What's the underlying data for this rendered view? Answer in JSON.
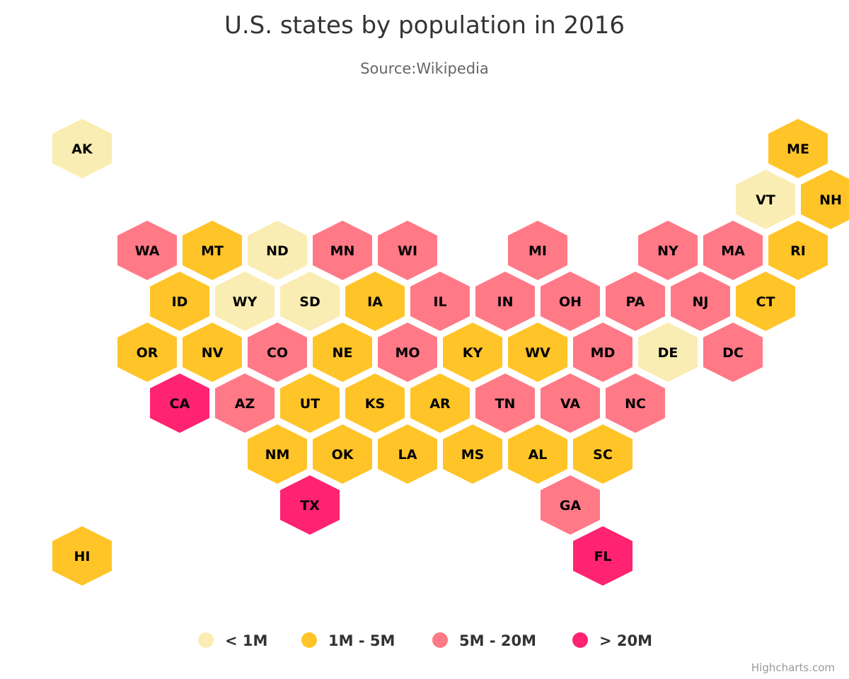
{
  "credits": "Highcharts.com",
  "chart_data": {
    "type": "heatmap",
    "variant": "tilemap-hexagon",
    "title": "U.S. states by population in 2016",
    "subtitle": "Source:Wikipedia",
    "legend": {
      "placement": "bottom-center",
      "classes": [
        {
          "name": "< 1M",
          "color": "#F9EDB3"
        },
        {
          "name": "1M - 5M",
          "color": "#FFC428"
        },
        {
          "name": "5M - 20M",
          "color": "#FF7987"
        },
        {
          "name": "> 20M",
          "color": "#FF2371"
        }
      ]
    },
    "grid_columns": [
      "x",
      "y"
    ],
    "tiles": [
      {
        "code": "AK",
        "x": 0,
        "y": 0,
        "class": "< 1M"
      },
      {
        "code": "ME",
        "x": 11,
        "y": 0,
        "class": "1M - 5M"
      },
      {
        "code": "VT",
        "x": 10,
        "y": 1,
        "class": "< 1M"
      },
      {
        "code": "NH",
        "x": 11,
        "y": 1,
        "class": "1M - 5M"
      },
      {
        "code": "WA",
        "x": 1,
        "y": 2,
        "class": "5M - 20M"
      },
      {
        "code": "MT",
        "x": 2,
        "y": 2,
        "class": "1M - 5M"
      },
      {
        "code": "ND",
        "x": 3,
        "y": 2,
        "class": "< 1M"
      },
      {
        "code": "MN",
        "x": 4,
        "y": 2,
        "class": "5M - 20M"
      },
      {
        "code": "WI",
        "x": 5,
        "y": 2,
        "class": "5M - 20M"
      },
      {
        "code": "MI",
        "x": 7,
        "y": 2,
        "class": "5M - 20M"
      },
      {
        "code": "NY",
        "x": 9,
        "y": 2,
        "class": "5M - 20M"
      },
      {
        "code": "MA",
        "x": 10,
        "y": 2,
        "class": "5M - 20M"
      },
      {
        "code": "RI",
        "x": 11,
        "y": 2,
        "class": "1M - 5M"
      },
      {
        "code": "ID",
        "x": 1,
        "y": 3,
        "class": "1M - 5M"
      },
      {
        "code": "WY",
        "x": 2,
        "y": 3,
        "class": "< 1M"
      },
      {
        "code": "SD",
        "x": 3,
        "y": 3,
        "class": "< 1M"
      },
      {
        "code": "IA",
        "x": 4,
        "y": 3,
        "class": "1M - 5M"
      },
      {
        "code": "IL",
        "x": 5,
        "y": 3,
        "class": "5M - 20M"
      },
      {
        "code": "IN",
        "x": 6,
        "y": 3,
        "class": "5M - 20M"
      },
      {
        "code": "OH",
        "x": 7,
        "y": 3,
        "class": "5M - 20M"
      },
      {
        "code": "PA",
        "x": 8,
        "y": 3,
        "class": "5M - 20M"
      },
      {
        "code": "NJ",
        "x": 9,
        "y": 3,
        "class": "5M - 20M"
      },
      {
        "code": "CT",
        "x": 10,
        "y": 3,
        "class": "1M - 5M"
      },
      {
        "code": "OR",
        "x": 1,
        "y": 4,
        "class": "1M - 5M"
      },
      {
        "code": "NV",
        "x": 2,
        "y": 4,
        "class": "1M - 5M"
      },
      {
        "code": "CO",
        "x": 3,
        "y": 4,
        "class": "5M - 20M"
      },
      {
        "code": "NE",
        "x": 4,
        "y": 4,
        "class": "1M - 5M"
      },
      {
        "code": "MO",
        "x": 5,
        "y": 4,
        "class": "5M - 20M"
      },
      {
        "code": "KY",
        "x": 6,
        "y": 4,
        "class": "1M - 5M"
      },
      {
        "code": "WV",
        "x": 7,
        "y": 4,
        "class": "1M - 5M"
      },
      {
        "code": "MD",
        "x": 8,
        "y": 4,
        "class": "5M - 20M"
      },
      {
        "code": "DE",
        "x": 9,
        "y": 4,
        "class": "< 1M"
      },
      {
        "code": "DC",
        "x": 10,
        "y": 4,
        "class": "5M - 20M"
      },
      {
        "code": "CA",
        "x": 1,
        "y": 5,
        "class": "> 20M"
      },
      {
        "code": "AZ",
        "x": 2,
        "y": 5,
        "class": "5M - 20M"
      },
      {
        "code": "UT",
        "x": 3,
        "y": 5,
        "class": "1M - 5M"
      },
      {
        "code": "KS",
        "x": 4,
        "y": 5,
        "class": "1M - 5M"
      },
      {
        "code": "AR",
        "x": 5,
        "y": 5,
        "class": "1M - 5M"
      },
      {
        "code": "TN",
        "x": 6,
        "y": 5,
        "class": "5M - 20M"
      },
      {
        "code": "VA",
        "x": 7,
        "y": 5,
        "class": "5M - 20M"
      },
      {
        "code": "NC",
        "x": 8,
        "y": 5,
        "class": "5M - 20M"
      },
      {
        "code": "NM",
        "x": 3,
        "y": 6,
        "class": "1M - 5M"
      },
      {
        "code": "OK",
        "x": 4,
        "y": 6,
        "class": "1M - 5M"
      },
      {
        "code": "LA",
        "x": 5,
        "y": 6,
        "class": "1M - 5M"
      },
      {
        "code": "MS",
        "x": 6,
        "y": 6,
        "class": "1M - 5M"
      },
      {
        "code": "AL",
        "x": 7,
        "y": 6,
        "class": "1M - 5M"
      },
      {
        "code": "SC",
        "x": 8,
        "y": 6,
        "class": "1M - 5M"
      },
      {
        "code": "TX",
        "x": 3,
        "y": 7,
        "class": "> 20M"
      },
      {
        "code": "GA",
        "x": 7,
        "y": 7,
        "class": "5M - 20M"
      },
      {
        "code": "HI",
        "x": 0,
        "y": 8,
        "class": "1M - 5M"
      },
      {
        "code": "FL",
        "x": 8,
        "y": 8,
        "class": "> 20M"
      }
    ]
  }
}
